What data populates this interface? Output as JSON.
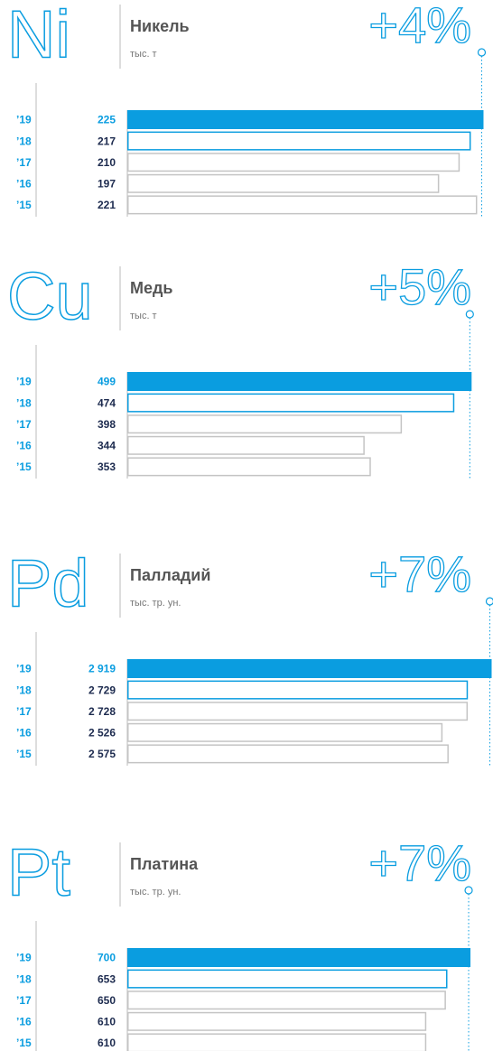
{
  "chart_data": [
    {
      "type": "bar",
      "orientation": "horizontal",
      "symbol": "Ni",
      "title": "Никель",
      "subtitle": "тыс. т",
      "change": "+4%",
      "categories": [
        "’19",
        "’18",
        "’17",
        "’16",
        "’15"
      ],
      "values": [
        225,
        217,
        210,
        197,
        221
      ],
      "xlim": [
        0,
        231
      ],
      "highlight_color": "#0a9de0",
      "muted_color": "#c4c4c4"
    },
    {
      "type": "bar",
      "orientation": "horizontal",
      "symbol": "Cu",
      "title": "Медь",
      "subtitle": "тыс. т",
      "change": "+5%",
      "categories": [
        "’19",
        "’18",
        "’17",
        "’16",
        "’15"
      ],
      "values": [
        499,
        474,
        398,
        344,
        353
      ],
      "xlim": [
        0,
        530
      ],
      "highlight_color": "#0a9de0",
      "muted_color": "#c4c4c4"
    },
    {
      "type": "bar",
      "orientation": "horizontal",
      "symbol": "Pd",
      "title": "Палладий",
      "subtitle": "тыс. тр. ун.",
      "change": "+7%",
      "categories": [
        "’19",
        "’18",
        "’17",
        "’16",
        "’15"
      ],
      "values": [
        2919,
        2729,
        2728,
        2526,
        2575
      ],
      "value_labels": [
        "2 919",
        "2 729",
        "2 728",
        "2 526",
        "2 575"
      ],
      "xlim": [
        0,
        2930
      ],
      "highlight_color": "#0a9de0",
      "muted_color": "#c4c4c4"
    },
    {
      "type": "bar",
      "orientation": "horizontal",
      "symbol": "Pt",
      "title": "Платина",
      "subtitle": "тыс. тр. ун.",
      "change": "+7%",
      "categories": [
        "’19",
        "’18",
        "’17",
        "’16",
        "’15"
      ],
      "values": [
        700,
        653,
        650,
        610,
        610
      ],
      "xlim": [
        0,
        746
      ],
      "highlight_color": "#0a9de0",
      "muted_color": "#c4c4c4"
    }
  ]
}
